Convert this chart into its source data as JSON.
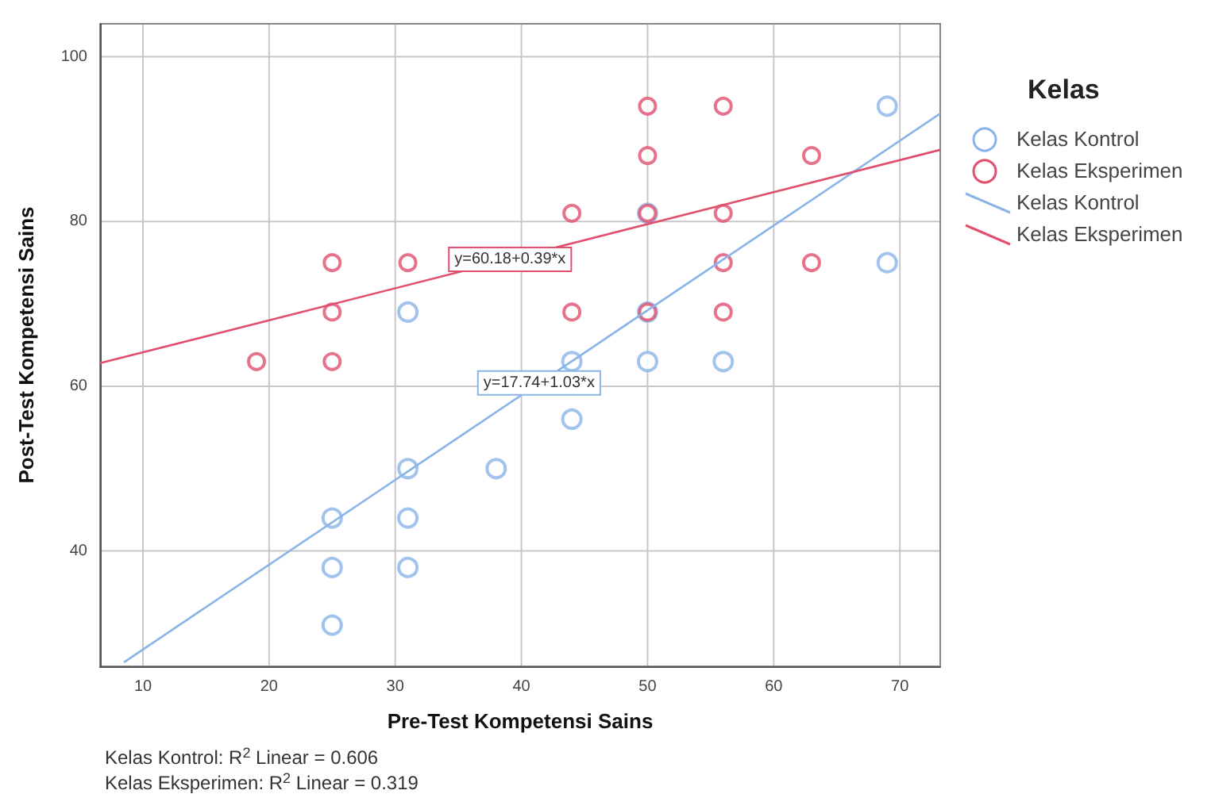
{
  "chart_data": {
    "type": "scatter",
    "xlabel": "Pre-Test Kompetensi Sains",
    "ylabel": "Post-Test Kompetensi Sains",
    "legend_title": "Kelas",
    "legend": "right",
    "grid": true,
    "marker": "circle",
    "xlim": [
      6.6,
      73.2
    ],
    "xticks": [
      10,
      20,
      30,
      40,
      50,
      60,
      70
    ],
    "ylim": [
      26,
      104
    ],
    "yticks": [
      40,
      60,
      80,
      100
    ],
    "series": [
      {
        "name": "Kelas Kontrol",
        "color": "#8ab4e8",
        "x": [
          25,
          25,
          25,
          31,
          31,
          31,
          31,
          38,
          44,
          44,
          50,
          50,
          50,
          56,
          69,
          69
        ],
        "values": [
          44,
          38,
          31,
          69,
          50,
          44,
          38,
          50,
          63,
          56,
          63,
          69,
          81,
          63,
          94,
          75
        ]
      },
      {
        "name": "Kelas Eksperimen",
        "color": "#e0506e",
        "x": [
          19,
          25,
          25,
          25,
          31,
          44,
          44,
          50,
          50,
          50,
          50,
          56,
          56,
          56,
          56,
          63,
          63
        ],
        "values": [
          63,
          75,
          69,
          63,
          75,
          81,
          69,
          94,
          88,
          81,
          69,
          94,
          81,
          75,
          69,
          88,
          75
        ]
      },
      {
        "name": "Kelas Kontrol",
        "type": "line",
        "marker": "none",
        "color": "#8ab4e8",
        "x": [
          8.5,
          73.2
        ],
        "values": [
          26.5,
          93.1
        ]
      },
      {
        "name": "Kelas Eksperimen",
        "type": "line",
        "marker": "none",
        "color": "#e0506e",
        "x": [
          6.6,
          73.2
        ],
        "values": [
          62.8,
          88.7
        ]
      }
    ],
    "annotations": [
      {
        "text": "y=17.74+1.03*x",
        "x": 41.4,
        "y": 60.4
      },
      {
        "text": "y=60.18+0.39*x",
        "x": 39.1,
        "y": 75.4
      },
      "Kelas Kontrol: R$^{2}$ Linear = 0.606",
      "Kelas Eksperimen: R$^{2}$ Linear = 0.319"
    ]
  }
}
